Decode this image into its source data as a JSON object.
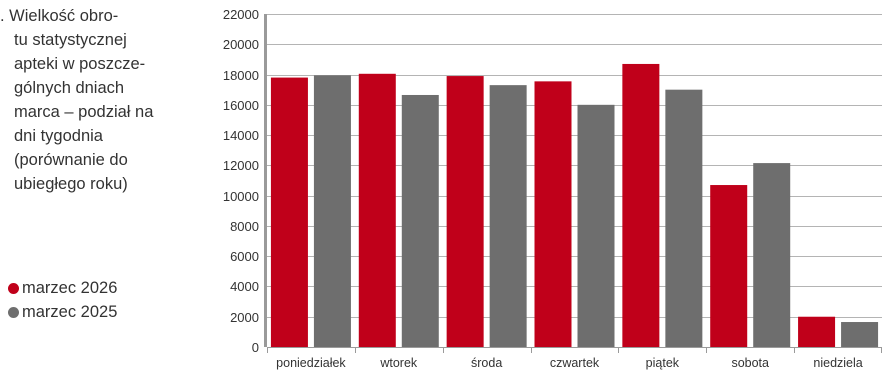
{
  "caption": {
    "lines": [
      ". Wielkość obro-",
      "tu statystycznej",
      "apteki w poszcze-",
      "gólnych dniach",
      "marca – podział na",
      "dni tygodnia",
      "(porównanie do",
      "ubiegłego roku)"
    ]
  },
  "chart_data": {
    "type": "bar",
    "categories": [
      "poniedziałek",
      "wtorek",
      "środa",
      "czwartek",
      "piątek",
      "sobota",
      "niedziela"
    ],
    "series": [
      {
        "name": "marzec 2026",
        "color": "#c0001a",
        "values": [
          17800,
          18050,
          17900,
          17550,
          18700,
          10700,
          2000
        ]
      },
      {
        "name": "marzec 2025",
        "color": "#6e6e6e",
        "values": [
          17950,
          16650,
          17300,
          16000,
          17000,
          12150,
          1650
        ]
      }
    ],
    "ylim": [
      0,
      22000
    ],
    "yticks": [
      0,
      2000,
      4000,
      6000,
      8000,
      10000,
      12000,
      14000,
      16000,
      18000,
      20000,
      22000
    ],
    "grid": true,
    "legend_position": "left",
    "xlabel": "",
    "ylabel": ""
  }
}
